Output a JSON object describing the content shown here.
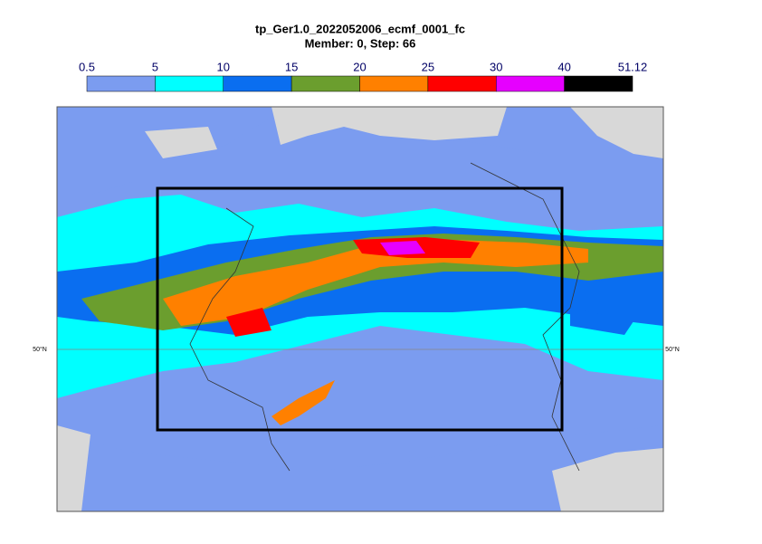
{
  "title": "tp_Ger1.0_2022052006_ecmf_0001_fc",
  "subtitle": "Member: 0, Step: 66",
  "colorbar": {
    "ticks": [
      0.5,
      5,
      10,
      15,
      20,
      25,
      30,
      40,
      51.12
    ],
    "colors": [
      "#7b9cf0",
      "#00ffff",
      "#0a6ef0",
      "#6b9e2e",
      "#ff8000",
      "#ff0000",
      "#e600ff",
      "#000000"
    ]
  },
  "map": {
    "latitude_label": "50°N"
  }
}
